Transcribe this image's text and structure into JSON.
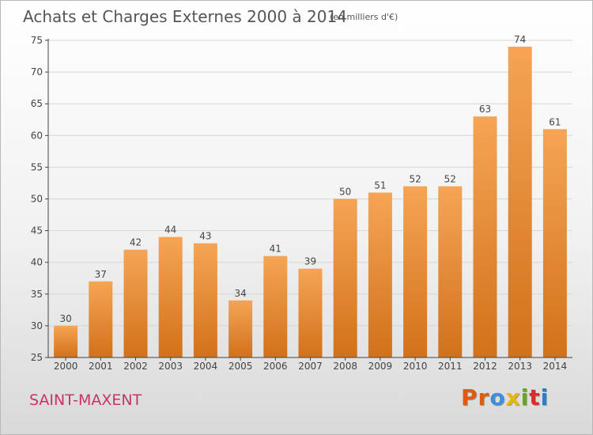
{
  "header": {
    "title": "Achats et Charges Externes 2000 à 2014",
    "unit": "(en milliers d'€)"
  },
  "footer": {
    "commune": "SAINT-MAXENT",
    "brand": "Proxiti",
    "brand_colors": [
      "#e05a10",
      "#e05a10",
      "#3d8fd6",
      "#e8b800",
      "#6aa520",
      "#d62d2d",
      "#2b7fc9"
    ]
  },
  "colors": {
    "bar_light": "#f5a555",
    "bar_dark": "#d2711a",
    "grid": "#d6d6d6",
    "axis": "#444444",
    "commune_text": "#c8336a"
  },
  "chart_data": {
    "type": "bar",
    "title": "Achats et Charges Externes 2000 à 2014",
    "categories": [
      "2000",
      "2001",
      "2002",
      "2003",
      "2004",
      "2005",
      "2006",
      "2007",
      "2008",
      "2009",
      "2010",
      "2011",
      "2012",
      "2013",
      "2014"
    ],
    "values": [
      30,
      37,
      42,
      44,
      43,
      34,
      41,
      39,
      50,
      51,
      52,
      52,
      63,
      74,
      61
    ],
    "xlabel": "",
    "ylabel": "",
    "ylim": [
      25,
      75
    ],
    "yticks": [
      25,
      30,
      35,
      40,
      45,
      50,
      55,
      60,
      65,
      70,
      75
    ],
    "grid": true,
    "data_labels": true
  }
}
